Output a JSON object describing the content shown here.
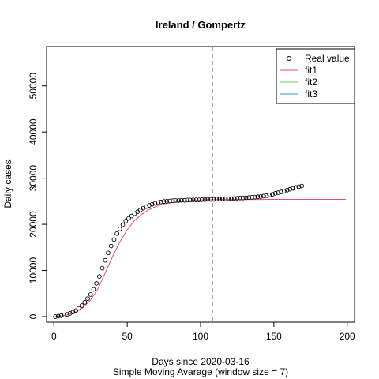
{
  "chart_data": {
    "type": "line",
    "title": "Ireland / Gompertz",
    "xlabel": "Days since 2020-03-16",
    "xlabel2": "Simple Moving Avarage (window size = 7)",
    "ylabel": "Daily cases",
    "xlim": [
      -5,
      205
    ],
    "ylim": [
      -1200,
      58500
    ],
    "x_ticks": [
      0,
      50,
      100,
      150,
      200
    ],
    "y_ticks": [
      0,
      10000,
      20000,
      30000,
      40000,
      50000
    ],
    "vline_x": 108,
    "legend_position": "top-right",
    "legend": [
      {
        "label": "Real value",
        "symbol": "circle",
        "color": "#000000"
      },
      {
        "label": "fit1",
        "symbol": "line",
        "color": "#DF536B"
      },
      {
        "label": "fit2",
        "symbol": "line",
        "color": "#61D04F"
      },
      {
        "label": "fit3",
        "symbol": "line",
        "color": "#2297E6"
      }
    ],
    "real_value": {
      "x": [
        1,
        3,
        5,
        7,
        9,
        11,
        13,
        15,
        17,
        19,
        21,
        23,
        25,
        27,
        29,
        31,
        33,
        35,
        37,
        39,
        41,
        43,
        45,
        47,
        49,
        51,
        53,
        55,
        57,
        59,
        61,
        63,
        65,
        67,
        69,
        71,
        73,
        75,
        77,
        79,
        81,
        83,
        85,
        87,
        89,
        91,
        93,
        95,
        97,
        99,
        101,
        103,
        105,
        107,
        109,
        111,
        113,
        115,
        117,
        119,
        121,
        123,
        125,
        127,
        129,
        131,
        133,
        135,
        137,
        139,
        141,
        143,
        145,
        147,
        149,
        151,
        153,
        155,
        157,
        159,
        161,
        163,
        165,
        167,
        169
      ],
      "y": [
        0,
        100,
        200,
        350,
        500,
        700,
        1000,
        1300,
        1800,
        2400,
        3100,
        3900,
        4800,
        5900,
        7200,
        8700,
        10500,
        12200,
        13800,
        15300,
        16700,
        18000,
        19000,
        19900,
        20700,
        21300,
        21800,
        22300,
        22700,
        23100,
        23500,
        23850,
        24100,
        24350,
        24550,
        24700,
        24850,
        24950,
        25000,
        25050,
        25100,
        25150,
        25150,
        25200,
        25200,
        25250,
        25250,
        25300,
        25300,
        25300,
        25350,
        25350,
        25400,
        25400,
        25400,
        25450,
        25450,
        25500,
        25500,
        25550,
        25550,
        25600,
        25650,
        25700,
        25700,
        25750,
        25800,
        25850,
        25900,
        25950,
        26000,
        26100,
        26200,
        26350,
        26500,
        26700,
        26850,
        27000,
        27200,
        27400,
        27600,
        27800,
        28000,
        28150,
        28300
      ]
    },
    "fit1": {
      "x": [
        1,
        5,
        10,
        15,
        20,
        25,
        30,
        35,
        40,
        45,
        50,
        55,
        60,
        65,
        70,
        75,
        80,
        90,
        100,
        110,
        120,
        130,
        140,
        150,
        160,
        170,
        180,
        190,
        199
      ],
      "y": [
        0,
        150,
        450,
        1000,
        2000,
        3600,
        6000,
        9500,
        13000,
        16200,
        18800,
        20800,
        22200,
        23200,
        23900,
        24400,
        24700,
        25050,
        25250,
        25330,
        25360,
        25380,
        25390,
        25395,
        25398,
        25399,
        25400,
        25400,
        25400
      ]
    }
  }
}
